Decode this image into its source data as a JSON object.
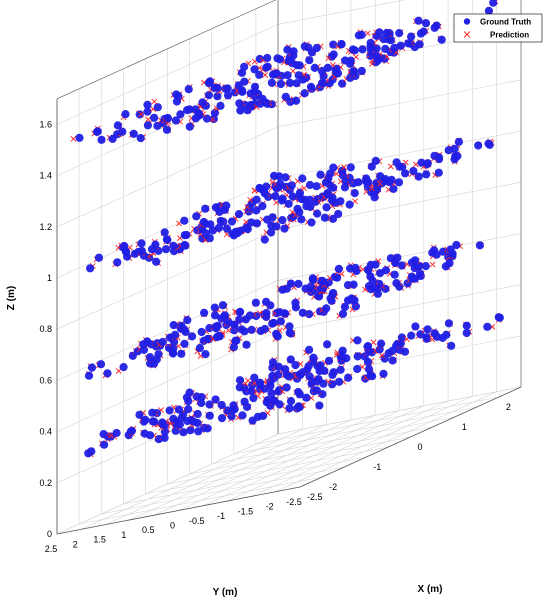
{
  "chart_data": {
    "type": "scatter",
    "title": "",
    "xlabel": "X (m)",
    "ylabel": "Y (m)",
    "zlabel": "Z (m)",
    "xlim": [
      -2.5,
      2.5
    ],
    "ylim": [
      -2.5,
      2.5
    ],
    "zlim": [
      0,
      1.7
    ],
    "grid": true,
    "legend_position": "top-right",
    "x_ticks": [
      "-2.5",
      "-2",
      "-1",
      "0",
      "1",
      "2"
    ],
    "y_ticks": [
      "2.5",
      "2",
      "1.5",
      "1",
      "0.5",
      "0",
      "-0.5",
      "-1",
      "-1.5",
      "-2",
      "-2.5"
    ],
    "z_ticks": [
      "0",
      "0.2",
      "0.4",
      "0.6",
      "0.8",
      "1",
      "1.2",
      "1.4",
      "1.6"
    ],
    "layer_heights": [
      0.3,
      0.6,
      1.0,
      1.5
    ],
    "series": [
      {
        "name": "Ground Truth",
        "marker": "filled-circle",
        "color": "#1f1fe6"
      },
      {
        "name": "Prediction",
        "marker": "x",
        "color": "#ff2020"
      }
    ]
  }
}
